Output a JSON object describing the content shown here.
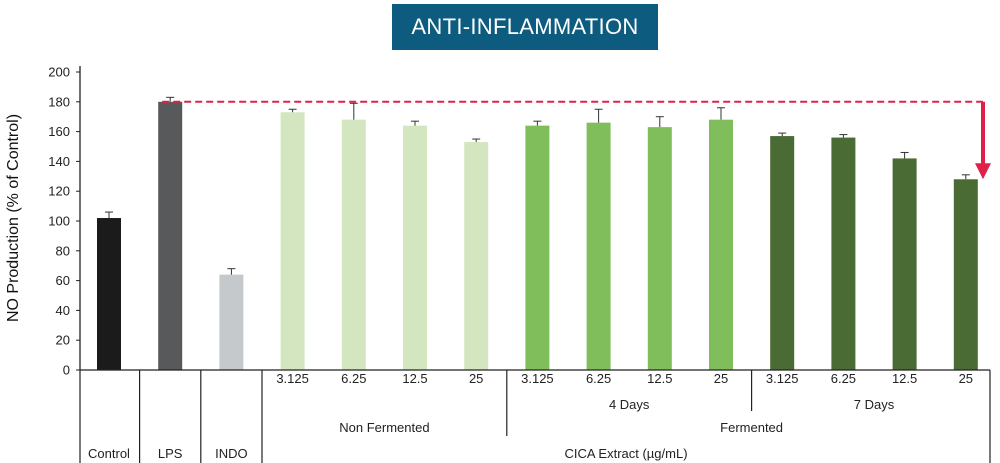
{
  "chart_data": {
    "type": "bar",
    "title": "ANTI-INFLAMMATION",
    "ylabel": "NO Production (% of Control)",
    "ylim": [
      0,
      200
    ],
    "yticks": [
      0,
      20,
      40,
      60,
      80,
      100,
      120,
      140,
      160,
      180,
      200
    ],
    "reference_line": {
      "value": 180,
      "style": "dashed",
      "color": "#e0204a"
    },
    "arrow": {
      "from": 180,
      "to": 128,
      "color": "#e0204a"
    },
    "bars": [
      {
        "label": "Control",
        "value": 102,
        "error": 4,
        "color": "#1b1b1b"
      },
      {
        "label": "LPS",
        "value": 180,
        "error": 3,
        "color": "#58595b"
      },
      {
        "label": "INDO",
        "value": 64,
        "error": 4,
        "color": "#c6c9cc"
      },
      {
        "label": "3.125",
        "value": 173,
        "error": 2,
        "color": "#d3e6c0"
      },
      {
        "label": "6.25",
        "value": 168,
        "error": 11,
        "color": "#d3e6c0"
      },
      {
        "label": "12.5",
        "value": 164,
        "error": 3,
        "color": "#d3e6c0"
      },
      {
        "label": "25",
        "value": 153,
        "error": 2,
        "color": "#d3e6c0"
      },
      {
        "label": "3.125",
        "value": 164,
        "error": 3,
        "color": "#80bd5b"
      },
      {
        "label": "6.25",
        "value": 166,
        "error": 9,
        "color": "#80bd5b"
      },
      {
        "label": "12.5",
        "value": 163,
        "error": 7,
        "color": "#80bd5b"
      },
      {
        "label": "25",
        "value": 168,
        "error": 8,
        "color": "#80bd5b"
      },
      {
        "label": "3.125",
        "value": 157,
        "error": 2,
        "color": "#4a6b34"
      },
      {
        "label": "6.25",
        "value": 156,
        "error": 2,
        "color": "#4a6b34"
      },
      {
        "label": "12.5",
        "value": 142,
        "error": 4,
        "color": "#4a6b34"
      },
      {
        "label": "25",
        "value": 128,
        "error": 3,
        "color": "#4a6b34"
      }
    ],
    "groups": {
      "level1": [
        {
          "label": "4 Days",
          "from": 7,
          "to": 10
        },
        {
          "label": "7 Days",
          "from": 11,
          "to": 14
        }
      ],
      "level2": [
        {
          "label": "Non Fermented",
          "from": 3,
          "to": 6
        },
        {
          "label": "Fermented",
          "from": 7,
          "to": 14
        }
      ],
      "level3": [
        {
          "label": "CICA Extract (µg/mL)",
          "from": 3,
          "to": 14
        }
      ]
    }
  }
}
